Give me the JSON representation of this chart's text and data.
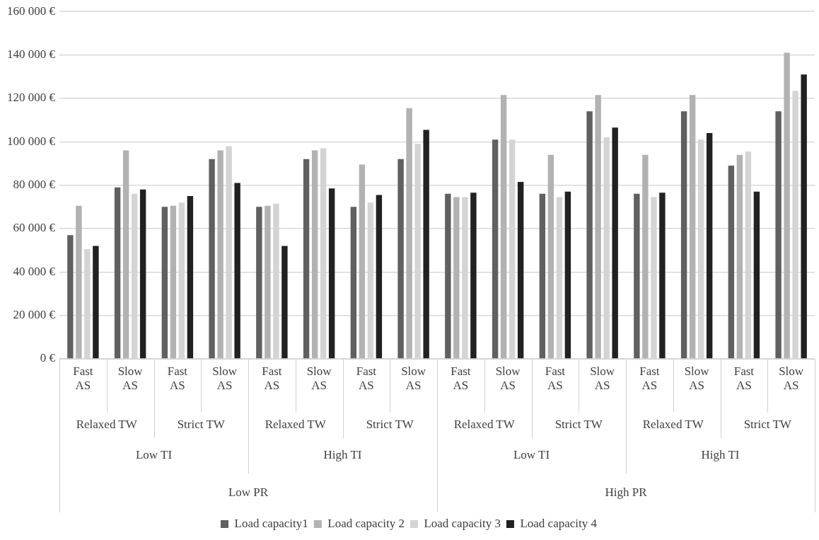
{
  "chart_data": {
    "type": "bar",
    "categories": [
      "Fast AS",
      "Slow AS",
      "Fast AS",
      "Slow AS",
      "Fast AS",
      "Slow AS",
      "Fast AS",
      "Slow AS",
      "Fast AS",
      "Slow AS",
      "Fast AS",
      "Slow AS",
      "Fast AS",
      "Slow AS",
      "Fast AS",
      "Slow AS"
    ],
    "series": [
      {
        "name": "Load capacity1",
        "color": "#606060",
        "values": [
          57000,
          79000,
          70000,
          92000,
          70000,
          92000,
          70000,
          92000,
          76000,
          101000,
          76000,
          114000,
          76000,
          114000,
          89000,
          114000
        ]
      },
      {
        "name": "Load capacity 2",
        "color": "#b2b2b2",
        "values": [
          70500,
          96000,
          70500,
          96000,
          70500,
          96000,
          89500,
          115500,
          74500,
          121500,
          94000,
          121500,
          94000,
          121500,
          94000,
          141000
        ]
      },
      {
        "name": "Load capacity 3",
        "color": "#d4d4d4",
        "values": [
          50500,
          76000,
          72000,
          98000,
          71500,
          97000,
          72000,
          99000,
          74500,
          101000,
          74500,
          102000,
          74500,
          101000,
          95500,
          123500
        ]
      },
      {
        "name": "Load capacity 4",
        "color": "#212121",
        "values": [
          52000,
          78000,
          75000,
          81000,
          52000,
          78500,
          75500,
          105500,
          76500,
          81500,
          77000,
          106500,
          76500,
          104000,
          77000,
          131000
        ]
      }
    ],
    "annotations": [
      "Relaxed TW",
      "Strict TW",
      "Relaxed TW",
      "Strict TW",
      "Relaxed TW",
      "Strict TW",
      "Relaxed TW",
      "Strict TW",
      "Low TI",
      "High TI",
      "Low TI",
      "High TI",
      "Low PR",
      "High PR"
    ],
    "ylim": [
      0,
      160000
    ],
    "yticks": [
      {
        "value": 0,
        "label": "0 €"
      },
      {
        "value": 20000,
        "label": "20 000 €"
      },
      {
        "value": 40000,
        "label": "40 000 €"
      },
      {
        "value": 60000,
        "label": "60 000 €"
      },
      {
        "value": 80000,
        "label": "80 000 €"
      },
      {
        "value": 100000,
        "label": "100 000 €"
      },
      {
        "value": 120000,
        "label": "120 000 €"
      },
      {
        "value": 140000,
        "label": "140 000 €"
      },
      {
        "value": 160000,
        "label": "160 000 €"
      }
    ],
    "grid": "y",
    "legend": "bottom"
  }
}
